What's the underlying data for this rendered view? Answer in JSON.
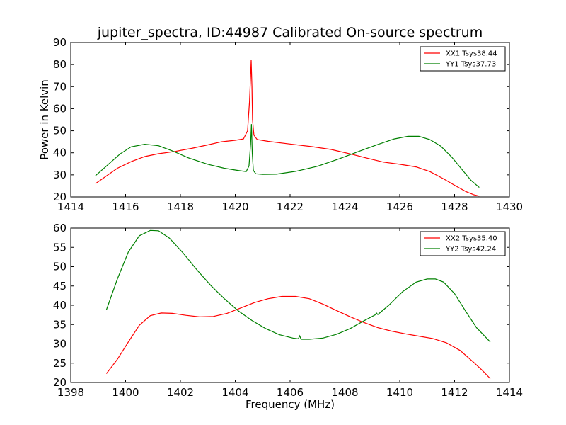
{
  "title": "jupiter_spectra, ID:44987 Calibrated On-source spectrum",
  "colors": {
    "xx": "#ff0000",
    "yy": "#008000",
    "axis": "#000000",
    "background": "#ffffff"
  },
  "chart_data": [
    {
      "type": "line",
      "ylabel": "Power in Kelvin",
      "xlabel": "",
      "xlim": [
        1414,
        1430
      ],
      "ylim": [
        20,
        90
      ],
      "xticks": [
        1414,
        1416,
        1418,
        1420,
        1422,
        1424,
        1426,
        1428,
        1430
      ],
      "yticks": [
        20,
        30,
        40,
        50,
        60,
        70,
        80,
        90
      ],
      "legend": "top-right",
      "grid": false,
      "series": [
        {
          "name": "XX1 Tsys38.44",
          "color": "#ff0000",
          "x": [
            1414.9,
            1415.3,
            1415.7,
            1416.2,
            1416.7,
            1417.2,
            1417.8,
            1418.4,
            1419.0,
            1419.5,
            1420.0,
            1420.3,
            1420.45,
            1420.52,
            1420.56,
            1420.58,
            1420.61,
            1420.63,
            1420.68,
            1420.8,
            1421.2,
            1422.0,
            1422.8,
            1423.5,
            1424.2,
            1424.8,
            1425.4,
            1426.0,
            1426.6,
            1427.1,
            1427.6,
            1428.0,
            1428.4,
            1428.7,
            1428.9
          ],
          "y": [
            26.0,
            29.5,
            33.0,
            36.0,
            38.3,
            39.6,
            40.6,
            42.0,
            43.6,
            45.0,
            45.7,
            46.3,
            50.0,
            63.0,
            75.0,
            82.0,
            70.0,
            55.0,
            48.0,
            46.0,
            45.2,
            44.0,
            42.8,
            41.5,
            39.5,
            37.6,
            35.8,
            34.8,
            33.6,
            31.5,
            28.2,
            25.3,
            22.5,
            21.0,
            20.4
          ]
        },
        {
          "name": "YY1 Tsys37.73",
          "color": "#008000",
          "x": [
            1414.9,
            1415.3,
            1415.8,
            1416.2,
            1416.7,
            1417.2,
            1417.7,
            1418.3,
            1419.0,
            1419.6,
            1420.1,
            1420.4,
            1420.5,
            1420.56,
            1420.59,
            1420.62,
            1420.66,
            1420.75,
            1421.0,
            1421.5,
            1422.2,
            1423.0,
            1423.8,
            1424.5,
            1425.2,
            1425.8,
            1426.3,
            1426.7,
            1427.1,
            1427.5,
            1427.9,
            1428.3,
            1428.6,
            1428.9
          ],
          "y": [
            29.6,
            34.0,
            39.5,
            42.7,
            43.9,
            43.2,
            40.9,
            37.7,
            34.8,
            33.0,
            32.0,
            31.5,
            34.0,
            44.0,
            53.0,
            40.0,
            32.0,
            30.5,
            30.2,
            30.3,
            31.6,
            33.9,
            37.3,
            40.6,
            43.8,
            46.3,
            47.5,
            47.5,
            46.0,
            43.0,
            38.0,
            32.0,
            27.5,
            24.3
          ]
        }
      ]
    },
    {
      "type": "line",
      "xlabel": "Frequency (MHz)",
      "ylabel": "",
      "xlim": [
        1398,
        1414
      ],
      "ylim": [
        20,
        60
      ],
      "xticks": [
        1398,
        1400,
        1402,
        1404,
        1406,
        1408,
        1410,
        1412,
        1414
      ],
      "yticks": [
        20,
        25,
        30,
        35,
        40,
        45,
        50,
        55,
        60
      ],
      "legend": "top-right",
      "grid": false,
      "series": [
        {
          "name": "XX2 Tsys35.40",
          "color": "#ff0000",
          "x": [
            1399.3,
            1399.7,
            1400.1,
            1400.5,
            1400.9,
            1401.3,
            1401.7,
            1402.2,
            1402.7,
            1403.2,
            1403.7,
            1404.2,
            1404.7,
            1405.2,
            1405.7,
            1406.2,
            1406.7,
            1407.2,
            1407.7,
            1408.2,
            1408.7,
            1409.2,
            1409.7,
            1410.2,
            1410.7,
            1411.2,
            1411.7,
            1412.2,
            1412.7,
            1413.0,
            1413.3
          ],
          "y": [
            22.3,
            26.0,
            30.5,
            34.8,
            37.3,
            38.0,
            37.9,
            37.4,
            37.0,
            37.1,
            37.9,
            39.3,
            40.7,
            41.7,
            42.3,
            42.3,
            41.7,
            40.3,
            38.6,
            37.0,
            35.5,
            34.2,
            33.3,
            32.6,
            32.0,
            31.4,
            30.3,
            28.3,
            25.2,
            23.2,
            21.0
          ]
        },
        {
          "name": "YY2 Tsys42.24",
          "color": "#008000",
          "x": [
            1399.3,
            1399.7,
            1400.1,
            1400.5,
            1400.9,
            1401.2,
            1401.6,
            1402.1,
            1402.6,
            1403.1,
            1403.6,
            1404.1,
            1404.6,
            1405.1,
            1405.6,
            1406.1,
            1406.3,
            1406.35,
            1406.4,
            1406.7,
            1407.2,
            1407.7,
            1408.2,
            1408.7,
            1409.1,
            1409.15,
            1409.2,
            1409.6,
            1410.1,
            1410.6,
            1411.0,
            1411.3,
            1411.6,
            1412.0,
            1412.4,
            1412.8,
            1413.3
          ],
          "y": [
            38.8,
            46.8,
            53.8,
            58.0,
            59.4,
            59.3,
            57.4,
            53.5,
            49.2,
            45.2,
            41.7,
            38.6,
            36.1,
            34.0,
            32.4,
            31.5,
            31.3,
            32.1,
            31.2,
            31.2,
            31.5,
            32.5,
            34.0,
            36.0,
            37.5,
            38.0,
            37.6,
            40.0,
            43.5,
            46.0,
            46.8,
            46.8,
            46.0,
            43.0,
            38.5,
            34.2,
            30.5
          ]
        }
      ]
    }
  ]
}
